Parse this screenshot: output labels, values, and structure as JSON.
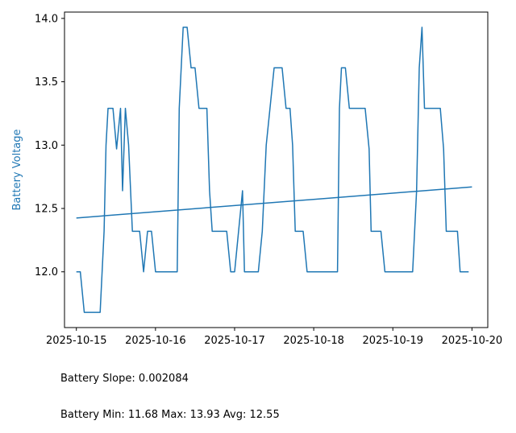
{
  "chart_data": {
    "type": "line",
    "xlabel": "",
    "ylabel": "Battery Voltage",
    "ylabel_color": "#1f77b4",
    "line_color": "#1f77b4",
    "xlim": [
      "2025-10-14T20:24",
      "2025-10-20T04:48"
    ],
    "ylim": [
      11.56,
      14.05
    ],
    "x_tick_labels": [
      "2025-10-15",
      "2025-10-16",
      "2025-10-17",
      "2025-10-18",
      "2025-10-19",
      "2025-10-20"
    ],
    "y_tick_values": [
      12.0,
      12.5,
      13.0,
      13.5,
      14.0
    ],
    "y_tick_labels": [
      "12.0",
      "12.5",
      "13.0",
      "13.5",
      "14.0"
    ],
    "grid": false,
    "series": [
      {
        "points": [
          [
            "2025-10-15T00:00",
            12.0
          ],
          [
            "2025-10-15T01:12",
            12.0
          ],
          [
            "2025-10-15T02:24",
            11.68
          ],
          [
            "2025-10-15T07:12",
            11.68
          ],
          [
            "2025-10-15T08:24",
            12.32
          ],
          [
            "2025-10-15T09:00",
            13.0
          ],
          [
            "2025-10-15T09:36",
            13.29
          ],
          [
            "2025-10-15T11:06",
            13.29
          ],
          [
            "2025-10-15T12:12",
            12.97
          ],
          [
            "2025-10-15T13:24",
            13.29
          ],
          [
            "2025-10-15T14:00",
            12.64
          ],
          [
            "2025-10-15T14:52",
            13.29
          ],
          [
            "2025-10-15T15:50",
            13.0
          ],
          [
            "2025-10-15T17:00",
            12.32
          ],
          [
            "2025-10-15T19:12",
            12.32
          ],
          [
            "2025-10-15T20:24",
            12.0
          ],
          [
            "2025-10-15T21:36",
            12.32
          ],
          [
            "2025-10-15T22:48",
            12.32
          ],
          [
            "2025-10-16T00:00",
            12.0
          ],
          [
            "2025-10-16T06:36",
            12.0
          ],
          [
            "2025-10-16T07:12",
            13.29
          ],
          [
            "2025-10-16T08:24",
            13.93
          ],
          [
            "2025-10-16T09:36",
            13.93
          ],
          [
            "2025-10-16T10:48",
            13.61
          ],
          [
            "2025-10-16T12:00",
            13.61
          ],
          [
            "2025-10-16T13:12",
            13.29
          ],
          [
            "2025-10-16T15:36",
            13.29
          ],
          [
            "2025-10-16T16:24",
            12.64
          ],
          [
            "2025-10-16T17:12",
            12.32
          ],
          [
            "2025-10-16T21:36",
            12.32
          ],
          [
            "2025-10-16T22:48",
            12.0
          ],
          [
            "2025-10-17T00:00",
            12.0
          ],
          [
            "2025-10-17T01:12",
            12.32
          ],
          [
            "2025-10-17T02:24",
            12.64
          ],
          [
            "2025-10-17T03:00",
            12.0
          ],
          [
            "2025-10-17T07:12",
            12.0
          ],
          [
            "2025-10-17T08:24",
            12.32
          ],
          [
            "2025-10-17T09:36",
            13.0
          ],
          [
            "2025-10-17T12:00",
            13.61
          ],
          [
            "2025-10-17T14:24",
            13.61
          ],
          [
            "2025-10-17T15:36",
            13.29
          ],
          [
            "2025-10-17T16:48",
            13.29
          ],
          [
            "2025-10-17T17:36",
            13.0
          ],
          [
            "2025-10-17T18:24",
            12.32
          ],
          [
            "2025-10-17T20:48",
            12.32
          ],
          [
            "2025-10-17T22:00",
            12.0
          ],
          [
            "2025-10-18T07:12",
            12.0
          ],
          [
            "2025-10-18T07:48",
            13.29
          ],
          [
            "2025-10-18T08:24",
            13.61
          ],
          [
            "2025-10-18T09:36",
            13.61
          ],
          [
            "2025-10-18T10:48",
            13.29
          ],
          [
            "2025-10-18T15:36",
            13.29
          ],
          [
            "2025-10-18T16:48",
            12.97
          ],
          [
            "2025-10-18T17:24",
            12.32
          ],
          [
            "2025-10-18T20:24",
            12.32
          ],
          [
            "2025-10-18T21:36",
            12.0
          ],
          [
            "2025-10-19T06:00",
            12.0
          ],
          [
            "2025-10-19T07:12",
            12.64
          ],
          [
            "2025-10-19T08:00",
            13.61
          ],
          [
            "2025-10-19T08:50",
            13.93
          ],
          [
            "2025-10-19T09:36",
            13.29
          ],
          [
            "2025-10-19T14:24",
            13.29
          ],
          [
            "2025-10-19T15:24",
            12.97
          ],
          [
            "2025-10-19T16:12",
            12.32
          ],
          [
            "2025-10-19T19:36",
            12.32
          ],
          [
            "2025-10-19T20:24",
            12.0
          ],
          [
            "2025-10-19T23:00",
            12.0
          ]
        ]
      }
    ],
    "trend_line": {
      "points": [
        [
          "2025-10-15T00:00",
          12.425
        ],
        [
          "2025-10-20T00:00",
          12.67
        ]
      ]
    }
  },
  "stats": {
    "slope_line": "Battery Slope: 0.002084",
    "range_line": "Battery Min: 11.68 Max: 13.93 Avg: 12.55"
  }
}
